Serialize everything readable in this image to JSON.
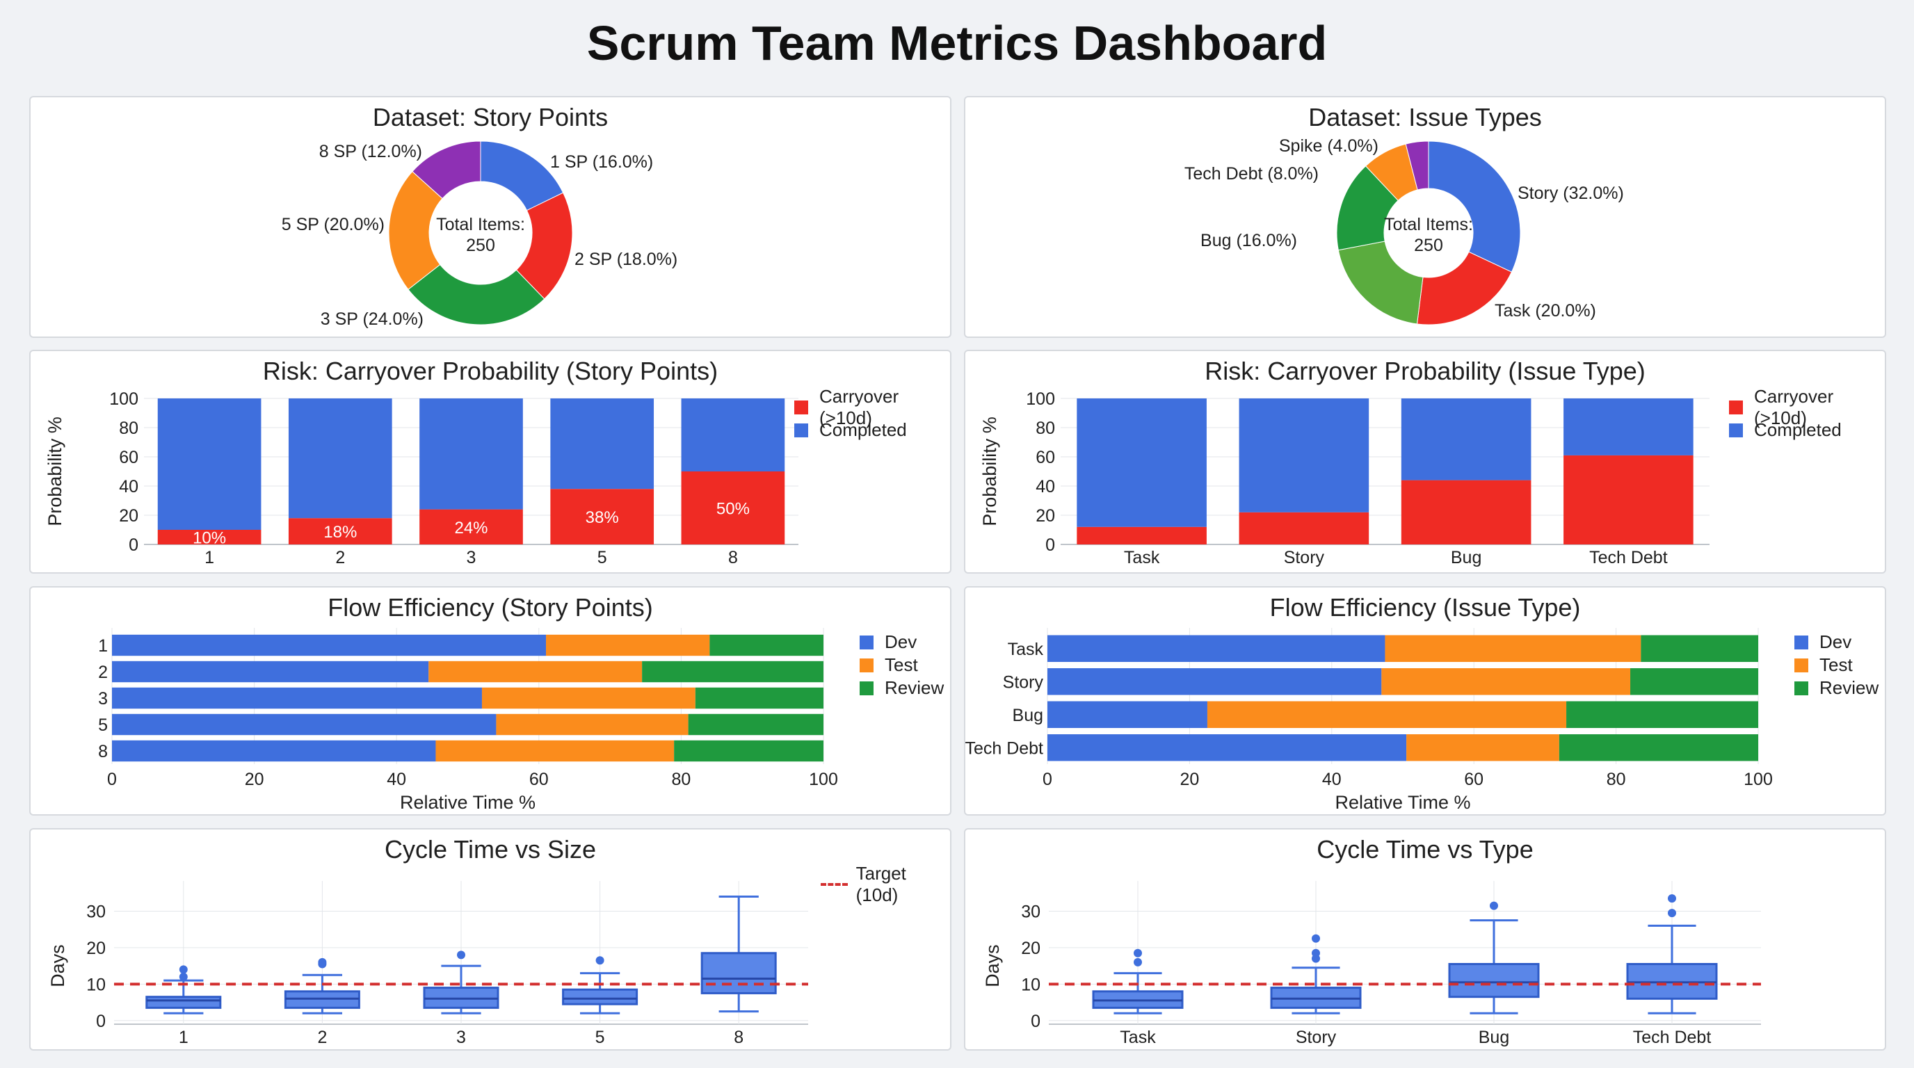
{
  "page": {
    "title": "Scrum Team Metrics Dashboard"
  },
  "colors": {
    "blue": "#3f6fdd",
    "red": "#ef2b24",
    "green": "#1f9a3e",
    "orange": "#fb8c1c",
    "purple": "#8e30b4",
    "lightgreen": "#5aac3e",
    "target": "#d32f2f"
  },
  "chart_data": [
    {
      "id": "donut_sp",
      "type": "pie",
      "title": "Dataset: Story Points",
      "center_label": "Total Items:",
      "center_value": "250",
      "slices": [
        {
          "label": "1 SP (16.0%)",
          "value": 16.0,
          "color": "#3f6fdd"
        },
        {
          "label": "2 SP (18.0%)",
          "value": 18.0,
          "color": "#ef2b24"
        },
        {
          "label": "3 SP (24.0%)",
          "value": 24.0,
          "color": "#1f9a3e"
        },
        {
          "label": "5 SP (20.0%)",
          "value": 20.0,
          "color": "#fb8c1c"
        },
        {
          "label": "8 SP (12.0%)",
          "value": 12.0,
          "color": "#8e30b4"
        }
      ]
    },
    {
      "id": "donut_type",
      "type": "pie",
      "title": "Dataset: Issue Types",
      "center_label": "Total Items:",
      "center_value": "250",
      "slices": [
        {
          "label": "Story (32.0%)",
          "value": 32.0,
          "color": "#3f6fdd"
        },
        {
          "label": "Task (20.0%)",
          "value": 20.0,
          "color": "#ef2b24"
        },
        {
          "label": "",
          "value": 20.0,
          "color": "#5aac3e"
        },
        {
          "label": "Bug (16.0%)",
          "value": 16.0,
          "color": "#1f9a3e"
        },
        {
          "label": "Tech Debt (8.0%)",
          "value": 8.0,
          "color": "#fb8c1c"
        },
        {
          "label": "Spike (4.0%)",
          "value": 4.0,
          "color": "#8e30b4"
        }
      ]
    },
    {
      "id": "risk_sp",
      "type": "bar",
      "stacked": true,
      "title": "Risk: Carryover Probability (Story Points)",
      "ylabel": "Probability %",
      "ylim": [
        0,
        100
      ],
      "yticks": [
        0,
        20,
        40,
        60,
        80,
        100
      ],
      "categories": [
        "1",
        "2",
        "3",
        "5",
        "8"
      ],
      "series": [
        {
          "name": "Carryover (>10d)",
          "values": [
            10,
            18,
            24,
            38,
            50
          ],
          "color": "#ef2b24"
        },
        {
          "name": "Completed",
          "values": [
            90,
            82,
            76,
            62,
            50
          ],
          "color": "#3f6fdd"
        }
      ],
      "data_labels": [
        "10%",
        "18%",
        "24%",
        "38%",
        "50%"
      ],
      "legend": "top-right"
    },
    {
      "id": "risk_type",
      "type": "bar",
      "stacked": true,
      "title": "Risk: Carryover Probability (Issue Type)",
      "ylabel": "Probability %",
      "ylim": [
        0,
        100
      ],
      "yticks": [
        0,
        20,
        40,
        60,
        80,
        100
      ],
      "categories": [
        "Task",
        "Story",
        "Bug",
        "Tech Debt"
      ],
      "series": [
        {
          "name": "Carryover (>10d)",
          "values": [
            12,
            22,
            44,
            61
          ],
          "color": "#ef2b24"
        },
        {
          "name": "Completed",
          "values": [
            88,
            78,
            56,
            39
          ],
          "color": "#3f6fdd"
        }
      ],
      "legend": "top-right"
    },
    {
      "id": "flow_sp",
      "type": "bar",
      "orientation": "horizontal",
      "stacked": true,
      "title": "Flow Efficiency (Story Points)",
      "xlabel": "Relative Time %",
      "xlim": [
        0,
        100
      ],
      "xticks": [
        0,
        20,
        40,
        60,
        80,
        100
      ],
      "categories": [
        "1",
        "2",
        "3",
        "5",
        "8"
      ],
      "series": [
        {
          "name": "Dev",
          "values": [
            61,
            44.5,
            52,
            54,
            45.5
          ],
          "color": "#3f6fdd"
        },
        {
          "name": "Test",
          "values": [
            23,
            30,
            30,
            27,
            33.5
          ],
          "color": "#fb8c1c"
        },
        {
          "name": "Review",
          "values": [
            16,
            25.5,
            18,
            19,
            21
          ],
          "color": "#1f9a3e"
        }
      ],
      "legend": "top-right"
    },
    {
      "id": "flow_type",
      "type": "bar",
      "orientation": "horizontal",
      "stacked": true,
      "title": "Flow Efficiency (Issue Type)",
      "xlabel": "Relative Time %",
      "xlim": [
        0,
        100
      ],
      "xticks": [
        0,
        20,
        40,
        60,
        80,
        100
      ],
      "categories": [
        "Task",
        "Story",
        "Bug",
        "Tech Debt"
      ],
      "series": [
        {
          "name": "Dev",
          "values": [
            47.5,
            47,
            22.5,
            50.5
          ],
          "color": "#3f6fdd"
        },
        {
          "name": "Test",
          "values": [
            36,
            35,
            50.5,
            21.5
          ],
          "color": "#fb8c1c"
        },
        {
          "name": "Review",
          "values": [
            16.5,
            18,
            27,
            28
          ],
          "color": "#1f9a3e"
        }
      ],
      "legend": "top-right"
    },
    {
      "id": "box_sp",
      "type": "box",
      "title": "Cycle Time vs Size",
      "ylabel": "Days",
      "ylim": [
        -1,
        36
      ],
      "yticks": [
        0,
        10,
        20,
        30
      ],
      "target": 10,
      "target_label": "Target (10d)",
      "categories": [
        "1",
        "2",
        "3",
        "5",
        "8"
      ],
      "boxes": [
        {
          "min": 2,
          "q1": 3.5,
          "median": 5.5,
          "q3": 6.5,
          "max": 11,
          "outliers": [
            12,
            14
          ]
        },
        {
          "min": 2,
          "q1": 3.5,
          "median": 6,
          "q3": 8,
          "max": 12.5,
          "outliers": [
            15.5,
            16
          ]
        },
        {
          "min": 2,
          "q1": 3.5,
          "median": 6,
          "q3": 9,
          "max": 15,
          "outliers": [
            18
          ]
        },
        {
          "min": 2,
          "q1": 4.5,
          "median": 6,
          "q3": 8.5,
          "max": 13,
          "outliers": [
            16.5
          ]
        },
        {
          "min": 2.5,
          "q1": 7.5,
          "median": 11.5,
          "q3": 18.5,
          "max": 34,
          "outliers": []
        }
      ]
    },
    {
      "id": "box_type",
      "type": "box",
      "title": "Cycle Time vs Type",
      "ylabel": "Days",
      "ylim": [
        -1,
        36
      ],
      "yticks": [
        0,
        10,
        20,
        30
      ],
      "target": 10,
      "categories": [
        "Task",
        "Story",
        "Bug",
        "Tech Debt"
      ],
      "boxes": [
        {
          "min": 2,
          "q1": 3.5,
          "median": 5.5,
          "q3": 8,
          "max": 13,
          "outliers": [
            16,
            18.5
          ]
        },
        {
          "min": 2,
          "q1": 3.5,
          "median": 6,
          "q3": 9,
          "max": 14.5,
          "outliers": [
            17,
            18.5,
            22.5
          ]
        },
        {
          "min": 2,
          "q1": 6.5,
          "median": 10.5,
          "q3": 15.5,
          "max": 27.5,
          "outliers": [
            31.5
          ]
        },
        {
          "min": 2,
          "q1": 6,
          "median": 10.5,
          "q3": 15.5,
          "max": 26,
          "outliers": [
            29.5,
            33.5
          ]
        }
      ]
    }
  ]
}
